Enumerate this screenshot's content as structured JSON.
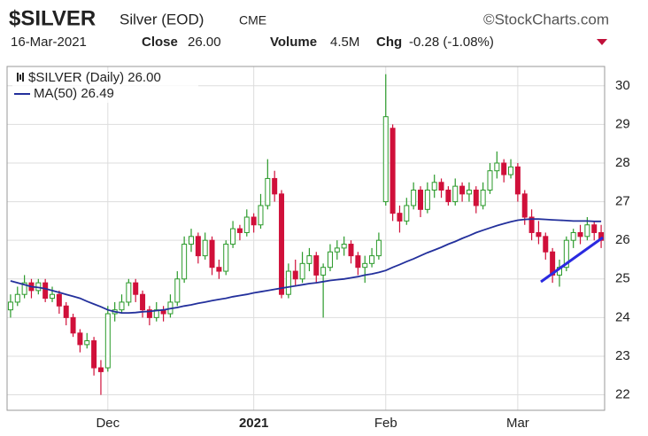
{
  "chart_data": {
    "type": "candlestick",
    "title": "$SILVER",
    "subtitle": "Silver (EOD)",
    "exchange": "CME",
    "source": "©StockCharts.com",
    "date": "16-Mar-2021",
    "close_label": "Close",
    "close_text": "26.00",
    "volume_label": "Volume",
    "volume_text": "4.5M",
    "change_label": "Chg",
    "change_text": "-0.28 (-1.08%)",
    "price_name": "$SILVER (Daily) 26.00",
    "up_color": "#2a9a2a",
    "down_color": "#d0103a",
    "categories": [
      null,
      null,
      null,
      null,
      null,
      null,
      null,
      null,
      null,
      null,
      null,
      null,
      null,
      null,
      "Dec",
      null,
      null,
      null,
      null,
      null,
      null,
      null,
      null,
      null,
      null,
      null,
      null,
      null,
      null,
      null,
      null,
      null,
      null,
      null,
      null,
      "2021",
      null,
      null,
      null,
      null,
      null,
      null,
      null,
      null,
      null,
      null,
      null,
      null,
      null,
      null,
      null,
      null,
      null,
      null,
      "Feb",
      null,
      null,
      null,
      null,
      null,
      null,
      null,
      null,
      null,
      null,
      null,
      null,
      null,
      null,
      null,
      null,
      null,
      null,
      "Mar",
      null,
      null,
      null,
      null,
      null,
      null,
      null,
      null,
      null,
      null,
      null,
      null
    ],
    "open": [
      24.2,
      24.4,
      24.6,
      24.9,
      24.7,
      24.9,
      24.5,
      24.6,
      24.3,
      24.0,
      23.6,
      23.3,
      23.4,
      22.7,
      22.7,
      24.1,
      24.2,
      24.4,
      24.9,
      24.6,
      24.2,
      24.0,
      24.2,
      24.1,
      24.4,
      25.0,
      25.9,
      26.1,
      25.6,
      26.0,
      25.3,
      25.2,
      25.9,
      26.3,
      26.2,
      26.6,
      26.4,
      26.9,
      27.6,
      27.2,
      24.6,
      25.2,
      25.0,
      25.4,
      25.6,
      25.1,
      25.3,
      25.7,
      25.8,
      25.9,
      25.6,
      25.3,
      25.4,
      25.6,
      27.0,
      28.9,
      26.7,
      26.5,
      26.9,
      27.3,
      26.8,
      27.3,
      27.5,
      27.3,
      27.0,
      27.4,
      27.2,
      27.3,
      26.9,
      27.3,
      27.8,
      28.0,
      27.7,
      27.9,
      27.2,
      26.6,
      26.2,
      26.1,
      25.7,
      25.1,
      25.3,
      26.0,
      26.2,
      26.1,
      26.4,
      26.2
    ],
    "high": [
      24.6,
      24.8,
      25.1,
      25.0,
      25.0,
      25.0,
      24.8,
      24.7,
      24.4,
      24.1,
      23.7,
      23.6,
      23.5,
      22.9,
      24.3,
      24.4,
      24.6,
      25.0,
      25.0,
      24.7,
      24.3,
      24.4,
      24.3,
      24.6,
      25.2,
      26.1,
      26.3,
      26.2,
      26.2,
      26.1,
      25.5,
      26.0,
      26.5,
      26.4,
      26.8,
      26.7,
      27.2,
      28.1,
      27.8,
      27.3,
      25.4,
      25.5,
      25.7,
      25.8,
      25.7,
      25.4,
      25.9,
      26.0,
      26.1,
      26.0,
      25.7,
      25.6,
      25.8,
      26.2,
      30.3,
      29.0,
      26.9,
      27.1,
      27.5,
      27.4,
      27.5,
      27.7,
      27.6,
      27.4,
      27.6,
      27.5,
      27.5,
      27.4,
      27.5,
      28.0,
      28.3,
      28.1,
      28.1,
      28.0,
      27.3,
      26.8,
      26.5,
      26.2,
      25.8,
      25.5,
      26.1,
      26.3,
      26.4,
      26.6,
      26.5,
      26.4
    ],
    "low": [
      24.0,
      24.3,
      24.5,
      24.5,
      24.6,
      24.4,
      24.4,
      24.1,
      23.8,
      23.5,
      23.1,
      23.2,
      22.5,
      22.0,
      22.6,
      23.9,
      24.1,
      24.3,
      24.4,
      24.0,
      23.8,
      23.9,
      23.9,
      24.0,
      24.3,
      24.9,
      25.7,
      25.4,
      25.5,
      25.1,
      25.0,
      25.1,
      25.8,
      26.0,
      26.1,
      26.2,
      26.3,
      26.8,
      27.0,
      24.5,
      24.5,
      24.8,
      24.9,
      25.2,
      24.9,
      24.0,
      25.2,
      25.5,
      25.6,
      25.4,
      25.1,
      24.9,
      25.3,
      25.5,
      26.9,
      26.5,
      26.2,
      26.4,
      26.8,
      26.6,
      26.7,
      27.1,
      27.1,
      26.9,
      26.9,
      27.0,
      27.0,
      26.7,
      26.8,
      27.2,
      27.6,
      27.5,
      27.6,
      27.0,
      26.4,
      26.0,
      25.9,
      25.5,
      24.9,
      24.8,
      25.2,
      25.8,
      25.9,
      26.0,
      26.0,
      25.8
    ],
    "close": [
      24.4,
      24.6,
      24.9,
      24.7,
      24.9,
      24.5,
      24.6,
      24.3,
      24.0,
      23.6,
      23.3,
      23.4,
      22.7,
      22.6,
      24.1,
      24.2,
      24.4,
      24.9,
      24.6,
      24.2,
      24.0,
      24.2,
      24.1,
      24.4,
      25.0,
      25.9,
      26.1,
      25.6,
      26.0,
      25.3,
      25.2,
      25.9,
      26.3,
      26.2,
      26.6,
      26.4,
      26.9,
      27.6,
      27.2,
      24.6,
      25.2,
      25.0,
      25.4,
      25.6,
      25.1,
      25.3,
      25.7,
      25.8,
      25.9,
      25.6,
      25.3,
      25.4,
      25.6,
      26.0,
      29.2,
      26.7,
      26.5,
      26.9,
      27.3,
      26.8,
      27.3,
      27.5,
      27.3,
      27.0,
      27.4,
      27.2,
      27.3,
      26.9,
      27.3,
      27.8,
      28.0,
      27.7,
      27.9,
      27.2,
      26.6,
      26.2,
      26.1,
      25.7,
      25.1,
      25.3,
      26.0,
      26.2,
      26.1,
      26.4,
      26.2,
      26.0
    ],
    "series": [
      {
        "name": "MA(50) 26.49",
        "color": "#23309c",
        "values": [
          24.95,
          24.9,
          24.85,
          24.8,
          24.78,
          24.75,
          24.7,
          24.65,
          24.6,
          24.55,
          24.5,
          24.42,
          24.35,
          24.28,
          24.2,
          24.15,
          24.12,
          24.12,
          24.13,
          24.15,
          24.16,
          24.18,
          24.2,
          24.23,
          24.26,
          24.3,
          24.33,
          24.37,
          24.4,
          24.44,
          24.47,
          24.5,
          24.54,
          24.57,
          24.6,
          24.64,
          24.67,
          24.7,
          24.73,
          24.76,
          24.79,
          24.82,
          24.85,
          24.88,
          24.9,
          24.93,
          24.96,
          24.98,
          25.0,
          25.03,
          25.06,
          25.1,
          25.13,
          25.17,
          25.22,
          25.3,
          25.37,
          25.45,
          25.52,
          25.6,
          25.68,
          25.75,
          25.82,
          25.9,
          25.97,
          26.05,
          26.12,
          26.2,
          26.26,
          26.32,
          26.38,
          26.43,
          26.48,
          26.52,
          26.54,
          26.55,
          26.55,
          26.54,
          26.53,
          26.52,
          26.51,
          26.5,
          26.5,
          26.5,
          26.49,
          26.49
        ]
      }
    ],
    "ylim": [
      21.6,
      30.5
    ],
    "yticks": [
      22,
      23,
      24,
      25,
      26,
      27,
      28,
      29,
      30
    ],
    "grid": true
  }
}
